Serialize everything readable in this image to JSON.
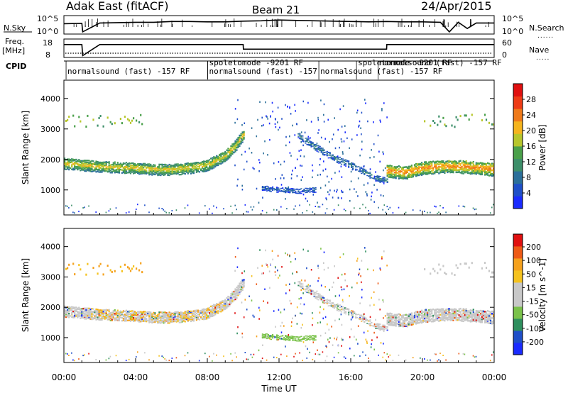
{
  "header": {
    "title": "Adak East (fitACF)",
    "beam": "Beam 21",
    "date": "24/Apr/2015"
  },
  "colors": {
    "power_scale": [
      "#1a2bff",
      "#1f4fc8",
      "#2b6f9a",
      "#3d8f6a",
      "#4aa04a",
      "#b7c62c",
      "#f5b41d",
      "#ef7a1a",
      "#ee3b16",
      "#e01010"
    ],
    "velocity_scale": [
      "#e01010",
      "#ee5a16",
      "#f5a11d",
      "#f5c21d",
      "#c8c8c8",
      "#c8c8c8",
      "#7ac24a",
      "#2e8f5e",
      "#1f4fc8",
      "#1a2bff"
    ]
  },
  "chart_data": [
    {
      "type": "line",
      "name": "noise-panel",
      "left_labels": [
        "N.Sky",
        "10^5",
        "10^0"
      ],
      "right_labels": [
        "N.Search",
        "10^5",
        "10^0"
      ],
      "ylim": [
        0,
        5
      ],
      "x_hours": [
        0,
        1,
        1.05,
        2,
        3,
        4,
        5,
        6,
        7,
        8,
        9,
        10,
        11,
        12,
        13,
        14,
        15,
        16,
        17,
        18,
        19,
        20,
        21,
        21.5,
        22,
        22.5,
        23,
        24
      ],
      "series": [
        {
          "values": [
            2.8,
            2.9,
            0.6,
            3.0,
            3.1,
            3.2,
            3.2,
            3.4,
            3.4,
            3.3,
            3.3,
            3.5,
            3.6,
            3.8,
            3.7,
            3.6,
            3.5,
            3.4,
            3.3,
            3.4,
            3.3,
            3.3,
            3.2,
            0.6,
            3.2,
            1.5,
            3.0,
            3.0
          ]
        }
      ]
    },
    {
      "type": "line",
      "name": "frequency-panel",
      "left_labels": [
        "Freq.",
        "[MHz]",
        "18",
        "8"
      ],
      "right_labels": [
        "Nave",
        "60",
        "0"
      ],
      "ylim": [
        8,
        18
      ],
      "x_hours": [
        0,
        1,
        1.05,
        2,
        6,
        10,
        10.01,
        14,
        18,
        18.01,
        21.5,
        22,
        24
      ],
      "series": [
        {
          "values": [
            15,
            15,
            9,
            15,
            15,
            15,
            12.5,
            12.5,
            12.5,
            15,
            15,
            15,
            15
          ]
        }
      ]
    },
    {
      "type": "table",
      "name": "cpid-bar",
      "label": "CPID",
      "entries": [
        {
          "start_hour": 0.2,
          "text": "normalsound (fast) -157 RF"
        },
        {
          "start_hour": 8.1,
          "text": "spoletomode -9201 RF"
        },
        {
          "start_hour": 8.1,
          "text": "normalsound (fast) -157"
        },
        {
          "start_hour": 14.3,
          "text": "normalsound (fast) -157 RF"
        },
        {
          "start_hour": 16.4,
          "text": "spoletomode -9201 RF"
        },
        {
          "start_hour": 17.6,
          "text": "normalsound (fast) -157 RF"
        }
      ]
    },
    {
      "type": "heatmap",
      "name": "power-panel",
      "ylabel": "Slant Range [km]",
      "yticks": [
        1000,
        2000,
        3000,
        4000
      ],
      "ylim": [
        180,
        4600
      ],
      "xlim": [
        0,
        24
      ],
      "colorbar_label": "Power [dB]",
      "colorbar_ticks": [
        4,
        8,
        12,
        16,
        20,
        24,
        28
      ],
      "colorbar_range": [
        0,
        32
      ],
      "bands": [
        {
          "x": [
            0,
            1,
            2,
            3,
            4,
            5,
            6,
            7,
            8,
            9,
            9.5,
            10
          ],
          "center": [
            1850,
            1800,
            1750,
            1720,
            1700,
            1650,
            1650,
            1700,
            1800,
            2100,
            2400,
            2800
          ],
          "width": 360,
          "power": 18
        },
        {
          "x": [
            13,
            14,
            15,
            16,
            17,
            17.5,
            18
          ],
          "center": [
            2800,
            2400,
            2050,
            1800,
            1500,
            1350,
            1300
          ],
          "width": 200,
          "power": 9
        },
        {
          "x": [
            18,
            19,
            20,
            21,
            22,
            23,
            24
          ],
          "center": [
            1600,
            1550,
            1700,
            1750,
            1750,
            1700,
            1650
          ],
          "width": 420,
          "power": 22
        },
        {
          "x": [
            11,
            12,
            13,
            14
          ],
          "center": [
            1050,
            1000,
            950,
            1000
          ],
          "width": 160,
          "power": 7
        }
      ]
    },
    {
      "type": "heatmap",
      "name": "velocity-panel",
      "ylabel": "Slant Range [km]",
      "yticks": [
        1000,
        2000,
        3000,
        4000
      ],
      "ylim": [
        180,
        4600
      ],
      "xlim": [
        0,
        24
      ],
      "xlabel": "Time UT",
      "xticks": [
        "00:00",
        "04:00",
        "08:00",
        "12:00",
        "16:00",
        "20:00",
        "00:00"
      ],
      "colorbar_label": "Velocity [m s^-1]",
      "colorbar_ticks": [
        "200",
        "100",
        "50",
        "15",
        "-15",
        "-50",
        "-100",
        "-200"
      ]
    }
  ]
}
